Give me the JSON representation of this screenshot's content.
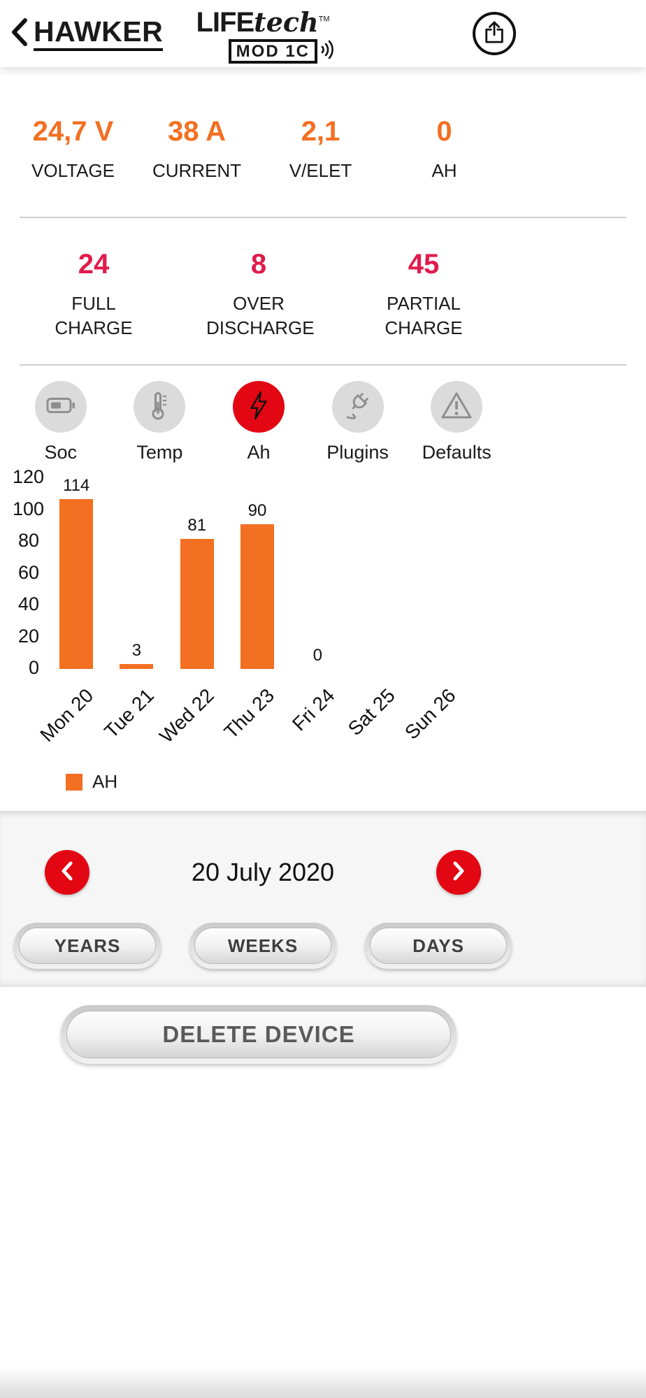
{
  "colors": {
    "orange": "#F36F21",
    "crimson": "#E11B4C",
    "red": "#E30613",
    "tab_circle_gray": "#DBDBDB",
    "icon_gray": "#8E8E8E"
  },
  "header": {
    "back_label": "HAWKER",
    "back_icon": "chevron-left-icon",
    "share_icon": "share-icon",
    "logo": {
      "word1": "LIFE",
      "word2": "tech",
      "tm": "TM",
      "model": "MOD 1C",
      "signal_icon": "signal-waves-icon"
    }
  },
  "stats_primary": [
    {
      "value": "24,7 V",
      "label": "VOLTAGE"
    },
    {
      "value": "38 A",
      "label": "CURRENT"
    },
    {
      "value": "2,1",
      "label": "V/ELET"
    },
    {
      "value": "0",
      "label": "AH"
    }
  ],
  "stats_secondary": [
    {
      "value": "24",
      "label": "FULL CHARGE"
    },
    {
      "value": "8",
      "label": "OVER DISCHARGE"
    },
    {
      "value": "45",
      "label": "PARTIAL CHARGE"
    }
  ],
  "tabs": [
    {
      "label": "Soc",
      "icon": "battery-icon",
      "active": false
    },
    {
      "label": "Temp",
      "icon": "thermometer-icon",
      "active": false
    },
    {
      "label": "Ah",
      "icon": "lightning-icon",
      "active": true
    },
    {
      "label": "Plugins",
      "icon": "plug-icon",
      "active": false
    },
    {
      "label": "Defaults",
      "icon": "warning-icon",
      "active": false
    }
  ],
  "chart_data": {
    "type": "bar",
    "categories": [
      "Mon 20",
      "Tue 21",
      "Wed 22",
      "Thu 23",
      "Fri 24",
      "Sat 25",
      "Sun 26"
    ],
    "values": [
      114,
      3,
      81,
      90,
      0,
      null,
      null
    ],
    "yticks": [
      0,
      20,
      40,
      60,
      80,
      100,
      120
    ],
    "ylim": [
      0,
      120
    ],
    "bar_color": "#F36F21",
    "legend": [
      "AH"
    ],
    "legend_position": "bottom-left",
    "grid": false,
    "title": "",
    "xlabel": "",
    "ylabel": ""
  },
  "date_nav": {
    "label": "20 July 2020",
    "prev_icon": "chevron-left-icon",
    "next_icon": "chevron-right-icon"
  },
  "range_buttons": [
    {
      "label": "YEARS"
    },
    {
      "label": "WEEKS"
    },
    {
      "label": "DAYS"
    }
  ],
  "actions": {
    "delete_label": "DELETE DEVICE"
  }
}
